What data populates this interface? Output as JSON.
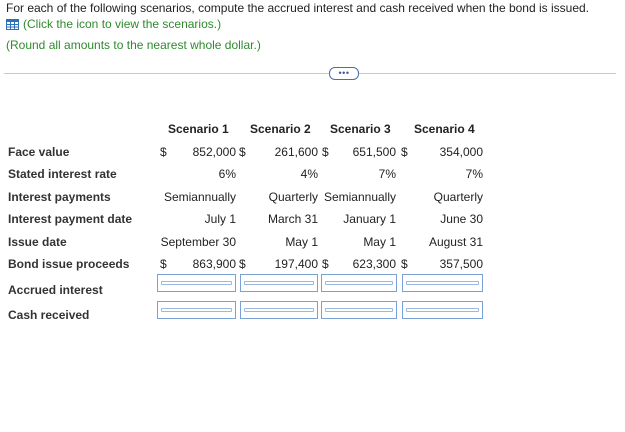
{
  "instructions": {
    "line1": "For each of the following scenarios, compute the accrued interest and cash received when the bond is issued.",
    "link": "(Click the icon to view the scenarios.)",
    "round_note": "(Round all amounts to the nearest whole dollar.)"
  },
  "toggle_label": "•••",
  "table": {
    "headers": [
      "Scenario 1",
      "Scenario 2",
      "Scenario 3",
      "Scenario 4"
    ],
    "dollar_sign": "$",
    "rows": {
      "face_value": {
        "label": "Face value",
        "values": [
          "852,000",
          "261,600",
          "651,500",
          "354,000"
        ]
      },
      "stated_rate": {
        "label": "Stated interest rate",
        "values": [
          "6%",
          "4%",
          "7%",
          "7%"
        ]
      },
      "interest_payments": {
        "label": "Interest payments",
        "values": [
          "Semiannually",
          "Quarterly",
          "Semiannually",
          "Quarterly"
        ]
      },
      "payment_date": {
        "label": "Interest payment date",
        "values": [
          "July 1",
          "March 31",
          "January 1",
          "June 30"
        ]
      },
      "issue_date": {
        "label": "Issue date",
        "values": [
          "September 30",
          "May 1",
          "May 1",
          "August 31"
        ]
      },
      "proceeds": {
        "label": "Bond issue proceeds",
        "values": [
          "863,900",
          "197,400",
          "623,300",
          "357,500"
        ]
      },
      "accrued_interest": {
        "label": "Accrued interest",
        "values": [
          "",
          "",
          "",
          ""
        ]
      },
      "cash_received": {
        "label": "Cash received",
        "values": [
          "",
          "",
          "",
          ""
        ]
      }
    }
  }
}
